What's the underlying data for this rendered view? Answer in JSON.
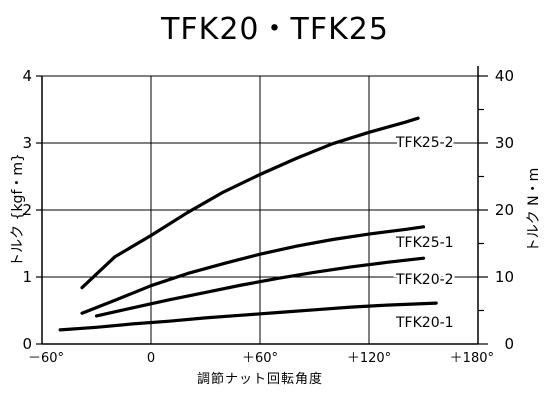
{
  "chart_data": {
    "type": "line",
    "title": "TFK20・TFK25",
    "xlabel": "調節ナット回転角度",
    "ylabel_left": "トルク {kgf・m}",
    "ylabel_right": "トルク N・m",
    "xlim": [
      -60,
      180
    ],
    "ylim_left": [
      0,
      4
    ],
    "ylim_right": [
      0,
      40
    ],
    "x_ticks": [
      -60,
      0,
      60,
      120,
      180
    ],
    "x_tick_labels": [
      "－60°",
      "0",
      "＋60°",
      "＋120°",
      "＋180°"
    ],
    "y_ticks_left": [
      0,
      1,
      2,
      3,
      4
    ],
    "y_tick_labels_left": [
      "0",
      "1",
      "2",
      "3",
      "4"
    ],
    "y_ticks_right": [
      0,
      10,
      20,
      30,
      40
    ],
    "y_tick_labels_right": [
      "0",
      "10",
      "20",
      "30",
      "40"
    ],
    "grid": true,
    "series": [
      {
        "name": "TFK25-2",
        "x": [
          -38,
          -20,
          0,
          20,
          40,
          60,
          80,
          100,
          120,
          140,
          147
        ],
        "y": [
          0.84,
          1.3,
          1.62,
          1.96,
          2.27,
          2.53,
          2.77,
          2.99,
          3.16,
          3.31,
          3.37
        ]
      },
      {
        "name": "TFK25-1",
        "x": [
          -38,
          -20,
          0,
          20,
          40,
          60,
          80,
          100,
          120,
          140,
          150
        ],
        "y": [
          0.46,
          0.65,
          0.87,
          1.05,
          1.2,
          1.34,
          1.46,
          1.56,
          1.64,
          1.71,
          1.75
        ]
      },
      {
        "name": "TFK20-2",
        "x": [
          -30,
          -10,
          10,
          30,
          50,
          70,
          90,
          110,
          130,
          150
        ],
        "y": [
          0.42,
          0.54,
          0.66,
          0.77,
          0.88,
          0.98,
          1.07,
          1.15,
          1.22,
          1.28
        ]
      },
      {
        "name": "TFK20-1",
        "x": [
          -50,
          -30,
          -10,
          10,
          30,
          50,
          70,
          90,
          110,
          130,
          157
        ],
        "y": [
          0.21,
          0.25,
          0.3,
          0.34,
          0.39,
          0.43,
          0.47,
          0.51,
          0.55,
          0.58,
          0.61
        ]
      }
    ]
  }
}
